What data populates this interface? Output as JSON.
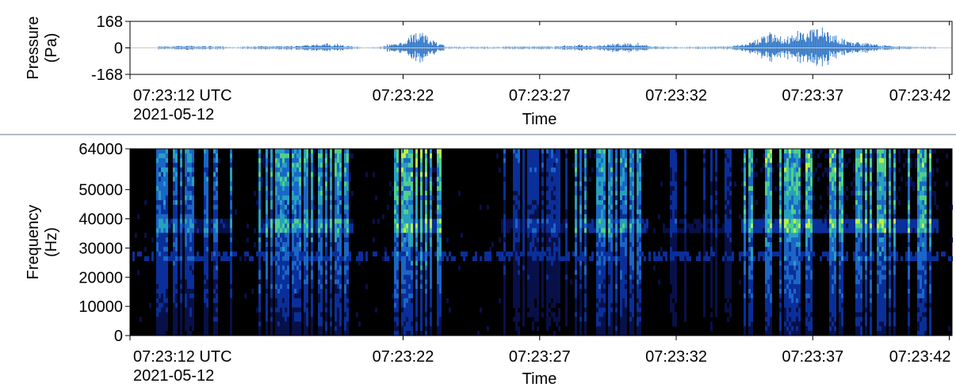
{
  "chart_data": [
    {
      "type": "line",
      "title": "",
      "ylabel_line1": "Pressure",
      "ylabel_line2": "(Pa)",
      "xlabel": "Time",
      "ylim": [
        -168,
        168
      ],
      "yticks": [
        "168",
        "0",
        "-168"
      ],
      "xticks": [
        {
          "t": 0,
          "label": "07:23:12 UTC",
          "sublabel": "2021-05-12"
        },
        {
          "t": 10,
          "label": "07:23:22"
        },
        {
          "t": 15,
          "label": "07:23:27"
        },
        {
          "t": 20,
          "label": "07:23:32"
        },
        {
          "t": 25,
          "label": "07:23:37"
        },
        {
          "t": 30,
          "label": "07:23:42"
        }
      ],
      "xlim_seconds": [
        0,
        30.1
      ],
      "line_color": "#3d7fc9",
      "envelope": [
        {
          "t": 1.0,
          "amp": 8
        },
        {
          "t": 2.0,
          "amp": 14
        },
        {
          "t": 3.0,
          "amp": 12
        },
        {
          "t": 3.8,
          "amp": 4
        },
        {
          "t": 4.8,
          "amp": 12
        },
        {
          "t": 5.5,
          "amp": 10
        },
        {
          "t": 6.5,
          "amp": 18
        },
        {
          "t": 7.2,
          "amp": 30
        },
        {
          "t": 8.0,
          "amp": 14
        },
        {
          "t": 8.5,
          "amp": 4
        },
        {
          "t": 9.0,
          "amp": 4
        },
        {
          "t": 10.0,
          "amp": 40
        },
        {
          "t": 10.3,
          "amp": 95
        },
        {
          "t": 10.7,
          "amp": 105
        },
        {
          "t": 11.1,
          "amp": 50
        },
        {
          "t": 11.6,
          "amp": 8
        },
        {
          "t": 12.5,
          "amp": 6
        },
        {
          "t": 14.0,
          "amp": 8
        },
        {
          "t": 15.5,
          "amp": 10
        },
        {
          "t": 16.5,
          "amp": 20
        },
        {
          "t": 17.0,
          "amp": 14
        },
        {
          "t": 18.0,
          "amp": 30
        },
        {
          "t": 18.6,
          "amp": 28
        },
        {
          "t": 19.3,
          "amp": 8
        },
        {
          "t": 20.5,
          "amp": 6
        },
        {
          "t": 22.0,
          "amp": 10
        },
        {
          "t": 22.8,
          "amp": 40
        },
        {
          "t": 23.5,
          "amp": 110
        },
        {
          "t": 24.0,
          "amp": 70
        },
        {
          "t": 24.7,
          "amp": 110
        },
        {
          "t": 25.3,
          "amp": 140
        },
        {
          "t": 25.8,
          "amp": 80
        },
        {
          "t": 26.5,
          "amp": 40
        },
        {
          "t": 27.5,
          "amp": 20
        },
        {
          "t": 28.5,
          "amp": 8
        },
        {
          "t": 29.5,
          "amp": 5
        }
      ]
    },
    {
      "type": "heatmap",
      "title": "",
      "ylabel_line1": "Frequency",
      "ylabel_line2": "(Hz)",
      "xlabel": "Time",
      "ylim": [
        0,
        64000
      ],
      "yticks": [
        "0",
        "10000",
        "20000",
        "30000",
        "40000",
        "50000",
        "64000"
      ],
      "ytick_values": [
        0,
        10000,
        20000,
        30000,
        40000,
        50000,
        64000
      ],
      "xticks": [
        {
          "t": 0,
          "label": "07:23:12 UTC",
          "sublabel": "2021-05-12"
        },
        {
          "t": 10,
          "label": "07:23:22"
        },
        {
          "t": 15,
          "label": "07:23:27"
        },
        {
          "t": 20,
          "label": "07:23:32"
        },
        {
          "t": 25,
          "label": "07:23:37"
        },
        {
          "t": 30,
          "label": "07:23:42"
        }
      ],
      "xlim_seconds": [
        0,
        30.1
      ],
      "colormap": [
        "#000000",
        "#08104a",
        "#0a2f9a",
        "#1a66c8",
        "#27a0c0",
        "#4fd08a",
        "#b6f04a"
      ],
      "bursts": [
        {
          "t0": 0.9,
          "t1": 3.7,
          "intensity": 0.7
        },
        {
          "t0": 4.7,
          "t1": 8.1,
          "intensity": 0.85
        },
        {
          "t0": 9.6,
          "t1": 11.4,
          "intensity": 1.0
        },
        {
          "t0": 13.5,
          "t1": 16.0,
          "intensity": 0.45
        },
        {
          "t0": 16.2,
          "t1": 18.9,
          "intensity": 0.8
        },
        {
          "t0": 19.5,
          "t1": 22.0,
          "intensity": 0.4
        },
        {
          "t0": 22.3,
          "t1": 29.6,
          "intensity": 0.95
        }
      ]
    }
  ]
}
